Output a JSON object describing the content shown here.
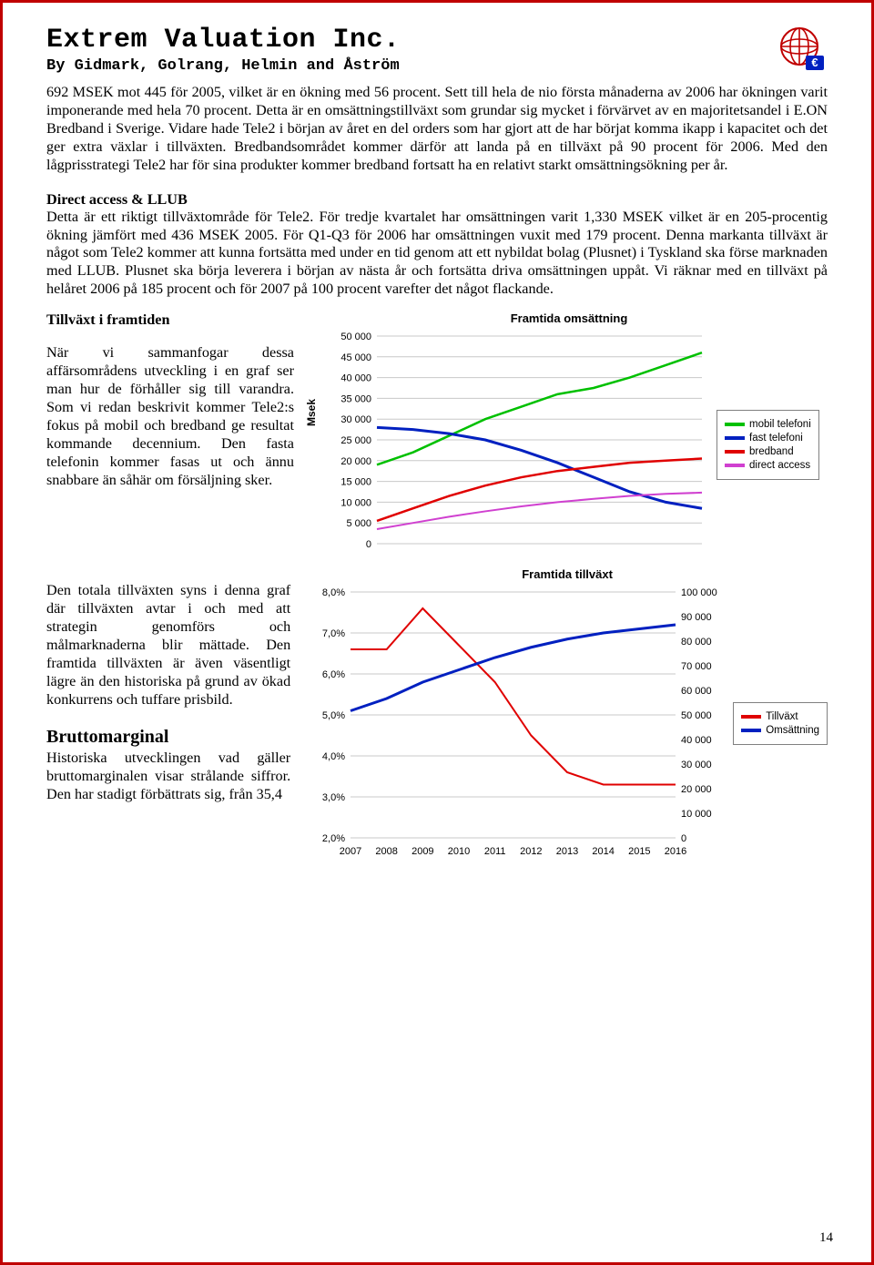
{
  "header": {
    "title": "Extrem Valuation Inc.",
    "subtitle": "By Gidmark, Golrang, Helmin and Åström"
  },
  "intro_paragraph": "692 MSEK mot 445 för 2005, vilket är en ökning med 56 procent. Sett till hela de nio första månaderna av 2006 har ökningen varit imponerande med hela 70 procent. Detta är en omsättningstillväxt som grundar sig mycket i förvärvet av en majoritetsandel i E.ON Bredband i Sverige. Vidare hade Tele2 i början av året en del orders som har gjort att de har börjat komma ikapp i kapacitet och det ger extra växlar i tillväxten. Bredbandsområdet kommer därför att landa på en tillväxt på 90 procent för 2006. Med den lågprisstrategi Tele2 har för sina produkter kommer bredband fortsatt ha en relativt starkt omsättningsökning per år.",
  "direct_access": {
    "heading": "Direct access & LLUB",
    "text": "Detta är ett riktigt tillväxtområde för Tele2. För tredje kvartalet har omsättningen varit 1,330 MSEK vilket är en 205-procentig ökning jämfört med 436 MSEK 2005. För Q1-Q3 för 2006 har omsättningen vuxit med 179 procent. Denna markanta tillväxt är något som Tele2 kommer att kunna fortsätta med under en tid genom att ett nybildat bolag (Plusnet) i Tyskland ska förse marknaden med LLUB. Plusnet ska börja leverera i början av nästa år och fortsätta driva omsättningen uppåt. Vi räknar med en tillväxt på helåret 2006 på 185 procent och för 2007 på 100 procent varefter det något flackande."
  },
  "future_growth": {
    "heading": "Tillväxt i framtiden",
    "text": "När vi sammanfogar dessa affärsområdens utveckling i en graf ser man hur de förhåller sig till varandra. Som vi redan beskrivit kommer Tele2:s fokus på mobil och bredband ge resultat kommande decennium. Den fasta telefonin kommer fasas ut och ännu snabbare än såhär om försäljning sker."
  },
  "total_growth": {
    "text": "Den totala tillväxten syns i denna graf där tillväxten avtar i och med att strategin genomförs och målmarknaderna blir mättade. Den framtida tillväxten är även väsentligt lägre än den historiska på grund av ökad konkurrens och tuffare prisbild."
  },
  "gross_margin": {
    "heading": "Bruttomarginal",
    "text": "Historiska utvecklingen vad gäller bruttomarginalen visar strålande siffror. Den har stadigt förbättrats sig, från 35,4"
  },
  "chart1": {
    "type": "line",
    "title": "Framtida omsättning",
    "ylabel": "Msek",
    "ylim": [
      0,
      50000
    ],
    "ytick_step": 5000,
    "yticks": [
      "0",
      "5 000",
      "10 000",
      "15 000",
      "20 000",
      "25 000",
      "30 000",
      "35 000",
      "40 000",
      "45 000",
      "50 000"
    ],
    "x_count": 10,
    "series": [
      {
        "name": "mobil telefoni",
        "color": "#00c000",
        "width": 2.5,
        "values": [
          19000,
          22000,
          26000,
          30000,
          33000,
          36000,
          37500,
          40000,
          43000,
          46000
        ]
      },
      {
        "name": "fast telefoni",
        "color": "#0020c0",
        "width": 3,
        "values": [
          28000,
          27500,
          26500,
          25000,
          22500,
          19500,
          16000,
          12500,
          10000,
          8500
        ]
      },
      {
        "name": "bredband",
        "color": "#e00000",
        "width": 2.5,
        "values": [
          5500,
          8500,
          11500,
          14000,
          16000,
          17500,
          18500,
          19500,
          20000,
          20500
        ]
      },
      {
        "name": "direct access",
        "color": "#d040d0",
        "width": 2,
        "values": [
          3500,
          5000,
          6500,
          7800,
          9000,
          10000,
          10800,
          11500,
          12000,
          12300
        ]
      }
    ],
    "background_color": "#ffffff",
    "grid_color": "#c8c8c8",
    "legend_border": "#808080"
  },
  "chart2": {
    "type": "line-dual",
    "title": "Framtida tillväxt",
    "xlabels": [
      "2007",
      "2008",
      "2009",
      "2010",
      "2011",
      "2012",
      "2013",
      "2014",
      "2015",
      "2016"
    ],
    "yleft": {
      "lim": [
        2.0,
        8.0
      ],
      "ticks": [
        "2,0%",
        "3,0%",
        "4,0%",
        "5,0%",
        "6,0%",
        "7,0%",
        "8,0%"
      ]
    },
    "yright": {
      "lim": [
        0,
        100000
      ],
      "ticks": [
        "0",
        "10 000",
        "20 000",
        "30 000",
        "40 000",
        "50 000",
        "60 000",
        "70 000",
        "80 000",
        "90 000",
        "100 000"
      ]
    },
    "series": [
      {
        "name": "Tillväxt",
        "axis": "left",
        "color": "#e00000",
        "width": 2,
        "values": [
          6.6,
          6.6,
          7.6,
          6.7,
          5.8,
          4.5,
          3.6,
          3.3,
          3.3,
          3.3
        ]
      },
      {
        "name": "Omsättning",
        "axis": "left_mapped",
        "color": "#0020c0",
        "width": 3,
        "values": [
          5.1,
          5.4,
          5.8,
          6.1,
          6.4,
          6.65,
          6.85,
          7.0,
          7.1,
          7.2
        ]
      }
    ],
    "background_color": "#ffffff",
    "grid_color": "#c8c8c8",
    "legend_border": "#808080"
  },
  "page_number": "14"
}
